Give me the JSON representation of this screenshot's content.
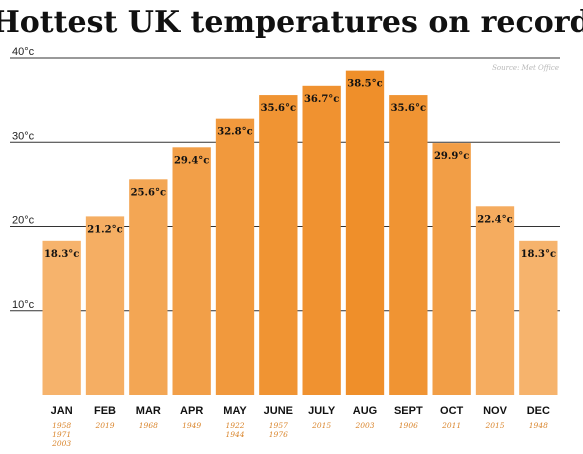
{
  "chart_data": {
    "type": "bar",
    "title": "Hottest UK temperatures on record",
    "source": "Source: Met Office",
    "categories": [
      "JAN",
      "FEB",
      "MAR",
      "APR",
      "MAY",
      "JUNE",
      "JULY",
      "AUG",
      "SEPT",
      "OCT",
      "NOV",
      "DEC"
    ],
    "values": [
      18.3,
      21.2,
      25.6,
      29.4,
      32.8,
      35.6,
      36.7,
      38.5,
      35.6,
      29.9,
      22.4,
      18.3
    ],
    "value_labels": [
      "18.3°c",
      "21.2°c",
      "25.6°c",
      "29.4°c",
      "32.8°c",
      "35.6°c",
      "36.7°c",
      "38.5°c",
      "35.6°c",
      "29.9°c",
      "22.4°c",
      "18.3°c"
    ],
    "years": [
      [
        "1958",
        "1971",
        "2003"
      ],
      [
        "2019"
      ],
      [
        "1968"
      ],
      [
        "1949"
      ],
      [
        "1922",
        "1944"
      ],
      [
        "1957",
        "1976"
      ],
      [
        "2015"
      ],
      [
        "2003"
      ],
      [
        "1906"
      ],
      [
        "2011"
      ],
      [
        "2015"
      ],
      [
        "1948"
      ]
    ],
    "ylim": [
      0,
      40
    ],
    "yticks": [
      10,
      20,
      30,
      40
    ],
    "ytick_labels": [
      "10°c",
      "20°c",
      "30°c",
      "40°c"
    ],
    "grid": true,
    "colors": {
      "bar_light": "#f6b36c",
      "bar_dark": "#ef8f2a",
      "year_text": "#d9842a",
      "grid": "#333333"
    }
  }
}
